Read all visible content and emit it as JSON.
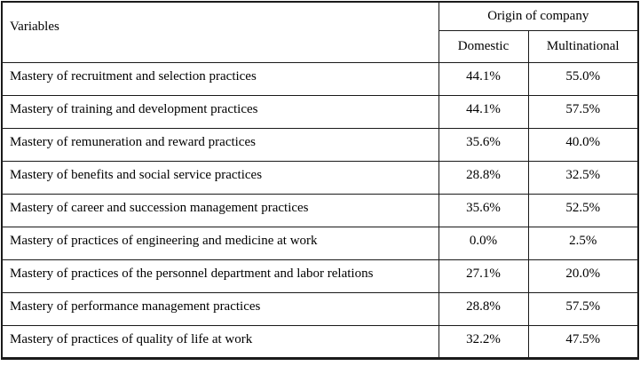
{
  "table": {
    "variables_header": "Variables",
    "origin_header": "Origin of company",
    "col_domestic": "Domestic",
    "col_multinational": "Multinational",
    "rows": [
      {
        "label": "Mastery of recruitment and selection practices",
        "domestic": "44.1%",
        "multinational": "55.0%"
      },
      {
        "label": "Mastery of training and development practices",
        "domestic": "44.1%",
        "multinational": "57.5%"
      },
      {
        "label": "Mastery of remuneration and reward practices",
        "domestic": "35.6%",
        "multinational": "40.0%"
      },
      {
        "label": "Mastery of benefits and social service practices",
        "domestic": "28.8%",
        "multinational": "32.5%"
      },
      {
        "label": "Mastery of career and succession management practices",
        "domestic": "35.6%",
        "multinational": "52.5%"
      },
      {
        "label": "Mastery of practices of engineering and medicine at work",
        "domestic": "0.0%",
        "multinational": "2.5%"
      },
      {
        "label": "Mastery of practices of the personnel department and labor relations",
        "domestic": "27.1%",
        "multinational": "20.0%"
      },
      {
        "label": "Mastery of performance management practices",
        "domestic": "28.8%",
        "multinational": "57.5%"
      },
      {
        "label": "Mastery of practices of quality of life at work",
        "domestic": "32.2%",
        "multinational": "47.5%"
      }
    ]
  }
}
